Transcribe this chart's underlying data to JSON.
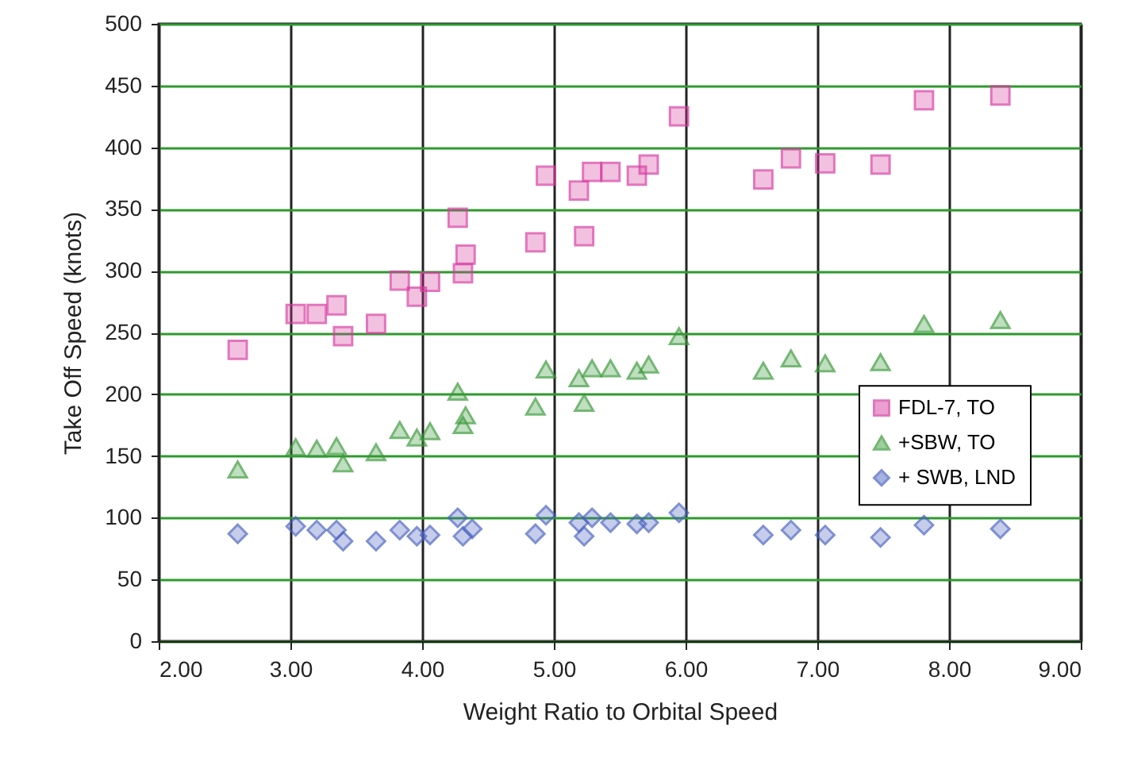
{
  "chart_data": {
    "type": "scatter",
    "xlabel": "Weight Ratio to Orbital Speed",
    "ylabel": "Take Off Speed (knots)",
    "x": [
      2.6,
      3.04,
      3.2,
      3.35,
      3.4,
      3.65,
      3.83,
      3.96,
      4.06,
      4.27,
      4.31,
      4.33,
      4.86,
      4.94,
      5.19,
      5.23,
      5.29,
      5.43,
      5.63,
      5.72,
      5.95,
      6.59,
      6.8,
      7.06,
      7.48,
      7.81,
      8.39
    ],
    "series": [
      {
        "name": "FDL-7, TO",
        "color": "#d63ca0",
        "marker": "square",
        "values": [
          236,
          265,
          265,
          272,
          247,
          257,
          292,
          279,
          291,
          343,
          298,
          313,
          323,
          377,
          365,
          328,
          380,
          380,
          377,
          386,
          425,
          374,
          391,
          387,
          386,
          438,
          442
        ]
      },
      {
        "name": "+SBW, TO",
        "color": "#3a9a3a",
        "marker": "triangle",
        "values": [
          139,
          157,
          156,
          158,
          144,
          153,
          171,
          165,
          170,
          202,
          175,
          183,
          190,
          220,
          213,
          193,
          221,
          221,
          219,
          224,
          247,
          219,
          229,
          225,
          226,
          257,
          260
        ]
      },
      {
        "name": "+ SWB, LND",
        "color": "#4a62c0",
        "marker": "diamond",
        "x": [
          2.6,
          3.04,
          3.2,
          3.35,
          3.4,
          3.65,
          3.83,
          3.96,
          4.06,
          4.27,
          4.31,
          4.38,
          4.86,
          4.94,
          5.19,
          5.23,
          5.29,
          5.43,
          5.63,
          5.72,
          5.95,
          6.59,
          6.8,
          7.06,
          7.48,
          7.81,
          8.39
        ],
        "values": [
          87,
          93,
          90,
          90,
          81,
          81,
          90,
          85,
          86,
          100,
          85,
          91,
          87,
          102,
          96,
          85,
          100,
          96,
          95,
          96,
          104,
          86,
          90,
          86,
          84,
          94,
          91
        ]
      }
    ],
    "xlim": [
      2,
      9
    ],
    "xticks": [
      {
        "value": 2,
        "label": "2.00"
      },
      {
        "value": 3,
        "label": "3.00"
      },
      {
        "value": 4,
        "label": "4.00"
      },
      {
        "value": 5,
        "label": "5.00"
      },
      {
        "value": 6,
        "label": "6.00"
      },
      {
        "value": 7,
        "label": "7.00"
      },
      {
        "value": 8,
        "label": "8.00"
      },
      {
        "value": 9,
        "label": "9.00"
      }
    ],
    "ylim": [
      0,
      500
    ],
    "yticks": [
      0,
      50,
      100,
      150,
      200,
      250,
      300,
      350,
      400,
      450,
      500
    ],
    "grid": true,
    "legend": "right"
  }
}
